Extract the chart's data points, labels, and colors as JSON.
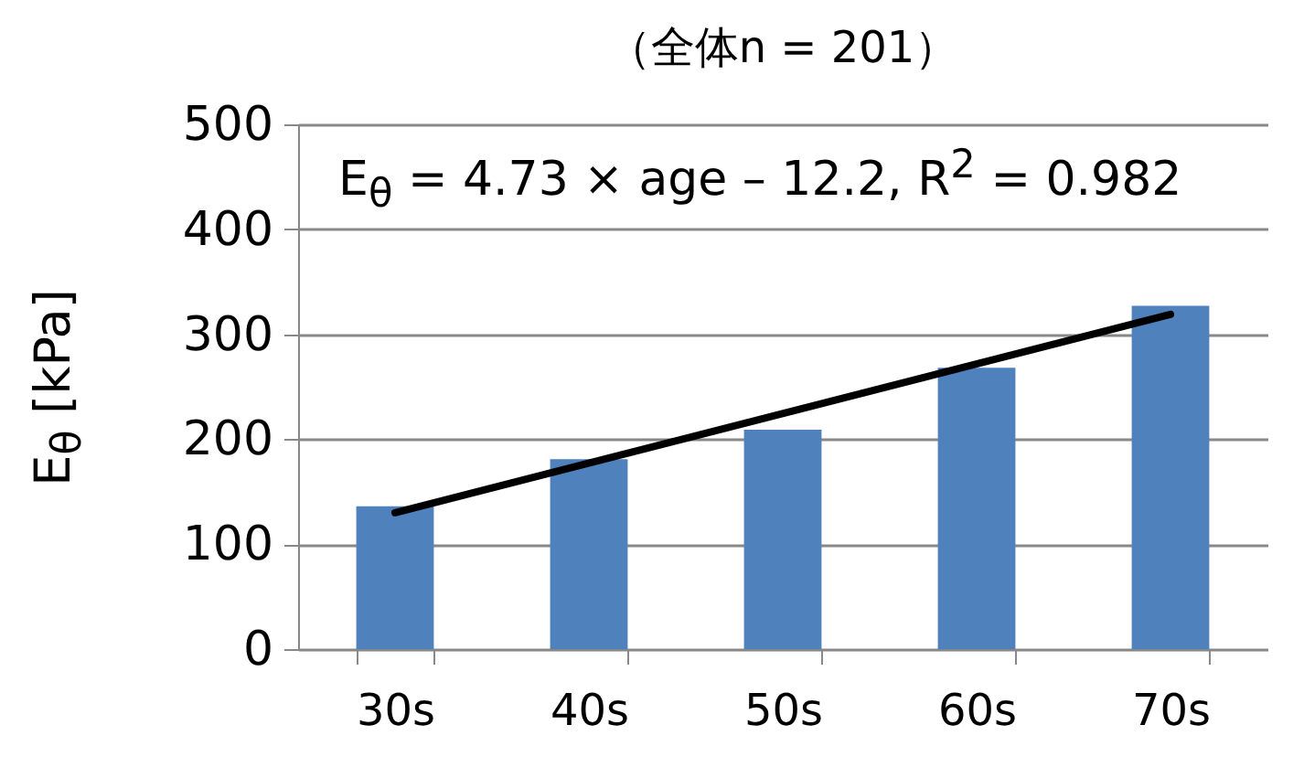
{
  "chart_data": {
    "type": "bar",
    "title": "（全体n = 201）",
    "ylabel": "E$_{θ}$ [kPa]",
    "categories": [
      "30s",
      "40s",
      "50s",
      "60s",
      "70s"
    ],
    "series": [
      {
        "color": "#4f81bd",
        "values": [
          136,
          181,
          209,
          268,
          327
        ]
      },
      {
        "type": "line",
        "color": "#000000",
        "x": [
          "30s",
          "70s"
        ],
        "values": [
          130,
          319
        ]
      }
    ],
    "annotations": [
      "E$_{θ}$ = 4.73 × age – 12.2, R$^{2}$ = 0.982"
    ],
    "ylim": [
      0,
      500
    ],
    "yticks": [
      0,
      100,
      200,
      300,
      400,
      500
    ],
    "grid": "y"
  }
}
